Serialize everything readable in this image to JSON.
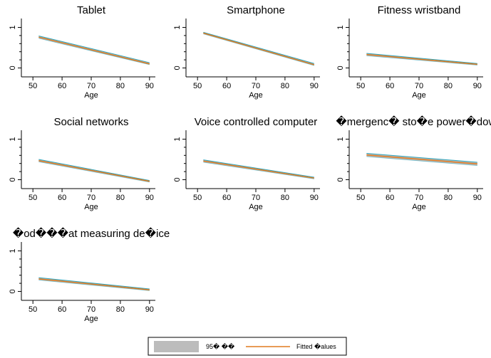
{
  "legend": {
    "ci_label": "95� ��",
    "fit_label": "Fitted �alues"
  },
  "colors": {
    "ci_band": "#bcbcbc",
    "ci_edge": "#2fa3b8",
    "fit_line": "#e07a1f",
    "axis": "#000000"
  },
  "chart_data": [
    {
      "type": "line",
      "title": "Tablet",
      "xlabel": "Age",
      "ylabel": "",
      "x_ticks": [
        50,
        60,
        70,
        80,
        90
      ],
      "y_ticks": [
        0,
        1
      ],
      "xlim": [
        48,
        92
      ],
      "ylim": [
        -0.22,
        1.22
      ],
      "series": [
        {
          "x": [
            52,
            90
          ],
          "fitted": [
            0.76,
            0.1
          ],
          "ci_lower": [
            0.73,
            0.08
          ],
          "ci_upper": [
            0.79,
            0.13
          ]
        }
      ]
    },
    {
      "type": "line",
      "title": "Smartphone",
      "xlabel": "Age",
      "ylabel": "",
      "x_ticks": [
        50,
        60,
        70,
        80,
        90
      ],
      "y_ticks": [
        0,
        1
      ],
      "xlim": [
        48,
        92
      ],
      "ylim": [
        -0.22,
        1.22
      ],
      "series": [
        {
          "x": [
            52,
            90
          ],
          "fitted": [
            0.86,
            0.08
          ],
          "ci_lower": [
            0.84,
            0.06
          ],
          "ci_upper": [
            0.88,
            0.11
          ]
        }
      ]
    },
    {
      "type": "line",
      "title": "Fitness wristband",
      "xlabel": "Age",
      "ylabel": "",
      "x_ticks": [
        50,
        60,
        70,
        80,
        90
      ],
      "y_ticks": [
        0,
        1
      ],
      "xlim": [
        48,
        92
      ],
      "ylim": [
        -0.22,
        1.22
      ],
      "series": [
        {
          "x": [
            52,
            90
          ],
          "fitted": [
            0.33,
            0.09
          ],
          "ci_lower": [
            0.3,
            0.07
          ],
          "ci_upper": [
            0.36,
            0.11
          ]
        }
      ]
    },
    {
      "type": "line",
      "title": "Social networks",
      "xlabel": "Age",
      "ylabel": "",
      "x_ticks": [
        50,
        60,
        70,
        80,
        90
      ],
      "y_ticks": [
        0,
        1
      ],
      "xlim": [
        48,
        92
      ],
      "ylim": [
        -0.22,
        1.22
      ],
      "series": [
        {
          "x": [
            52,
            90
          ],
          "fitted": [
            0.47,
            -0.04
          ],
          "ci_lower": [
            0.44,
            -0.06
          ],
          "ci_upper": [
            0.5,
            -0.02
          ]
        }
      ]
    },
    {
      "type": "line",
      "title": "Voice controlled computer",
      "xlabel": "Age",
      "ylabel": "",
      "x_ticks": [
        50,
        60,
        70,
        80,
        90
      ],
      "y_ticks": [
        0,
        1
      ],
      "xlim": [
        48,
        92
      ],
      "ylim": [
        -0.22,
        1.22
      ],
      "series": [
        {
          "x": [
            52,
            90
          ],
          "fitted": [
            0.46,
            0.04
          ],
          "ci_lower": [
            0.43,
            0.02
          ],
          "ci_upper": [
            0.49,
            0.06
          ]
        }
      ]
    },
    {
      "type": "line",
      "title": "�mergenc� sto�e power�down",
      "xlabel": "Age",
      "ylabel": "",
      "x_ticks": [
        50,
        60,
        70,
        80,
        90
      ],
      "y_ticks": [
        0,
        1
      ],
      "xlim": [
        48,
        92
      ],
      "ylim": [
        -0.22,
        1.22
      ],
      "series": [
        {
          "x": [
            52,
            90
          ],
          "fitted": [
            0.61,
            0.39
          ],
          "ci_lower": [
            0.57,
            0.35
          ],
          "ci_upper": [
            0.65,
            0.43
          ]
        }
      ]
    },
    {
      "type": "line",
      "title": "�od���at measuring de�ice",
      "xlabel": "Age",
      "ylabel": "",
      "x_ticks": [
        50,
        60,
        70,
        80,
        90
      ],
      "y_ticks": [
        0,
        1
      ],
      "xlim": [
        48,
        92
      ],
      "ylim": [
        -0.22,
        1.22
      ],
      "series": [
        {
          "x": [
            52,
            90
          ],
          "fitted": [
            0.31,
            0.04
          ],
          "ci_lower": [
            0.28,
            0.02
          ],
          "ci_upper": [
            0.34,
            0.06
          ]
        }
      ]
    }
  ]
}
